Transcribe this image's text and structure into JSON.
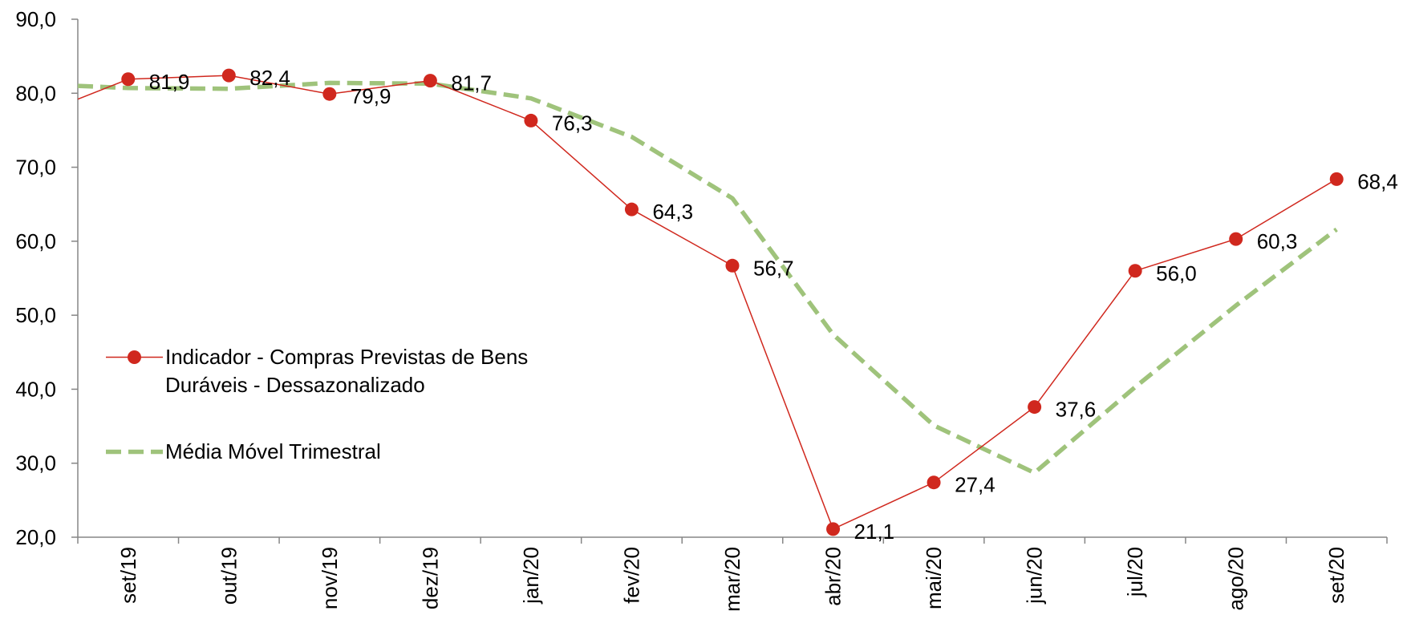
{
  "chart_data": {
    "type": "line",
    "title": "",
    "xlabel": "",
    "ylabel": "",
    "categories": [
      "set/19",
      "out/19",
      "nov/19",
      "dez/19",
      "jan/20",
      "fev/20",
      "mar/20",
      "abr/20",
      "mai/20",
      "jun/20",
      "jul/20",
      "ago/20",
      "set/20"
    ],
    "ylim": [
      20,
      90
    ],
    "yticks": [
      20,
      30,
      40,
      50,
      60,
      70,
      80,
      90
    ],
    "ytick_labels": [
      "20,0",
      "30,0",
      "40,0",
      "50,0",
      "60,0",
      "70,0",
      "80,0",
      "90,0"
    ],
    "grid": false,
    "legend_position": "center-left",
    "series": [
      {
        "name": "Indicador - Compras Previstas de Bens Duráveis - Dessazonalizado",
        "values": [
          81.9,
          82.4,
          79.9,
          81.7,
          76.3,
          64.3,
          56.7,
          21.1,
          27.4,
          37.6,
          56.0,
          60.3,
          68.4
        ],
        "data_labels": [
          "81,9",
          "82,4",
          "79,9",
          "81,7",
          "76,3",
          "64,3",
          "56,7",
          "21,1",
          "27,4",
          "37,6",
          "56,0",
          "60,3",
          "68,4"
        ],
        "left_edge_value": 79.2,
        "color": "#d0281e",
        "line_style": "solid",
        "marker": "circle"
      },
      {
        "name": "Média Móvel Trimestral",
        "values": [
          80.7,
          80.6,
          81.4,
          81.3,
          79.3,
          74.1,
          65.8,
          47.4,
          35.1,
          28.7,
          40.3,
          51.3,
          61.6
        ],
        "left_edge_value": 81.0,
        "color": "#9fc37b",
        "line_style": "dashed",
        "marker": "none"
      }
    ],
    "axis_color": "#868686"
  }
}
